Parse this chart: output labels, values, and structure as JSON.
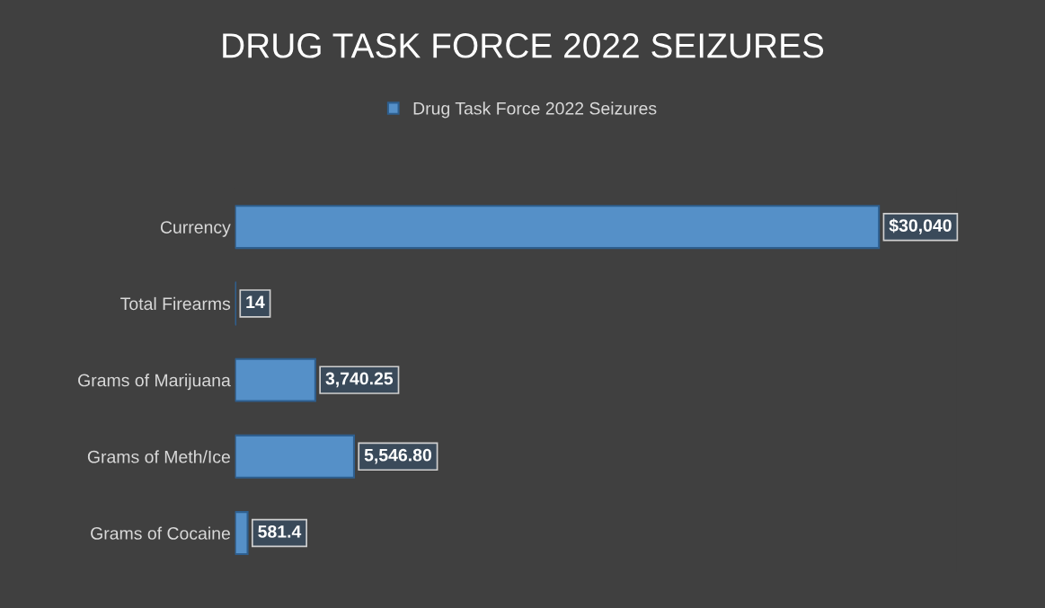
{
  "chart_data": {
    "type": "bar",
    "orientation": "horizontal",
    "title": "DRUG TASK FORCE 2022 SEIZURES",
    "categories": [
      "Currency",
      "Total Firearms",
      "Grams of Marijuana",
      "Grams of Meth/Ice",
      "Grams of Cocaine"
    ],
    "series": [
      {
        "name": "Drug Task Force 2022 Seizures",
        "color": "#5590c8",
        "values": [
          30040,
          14,
          3740.25,
          5546.8,
          581.4
        ],
        "value_labels": [
          "$30,040",
          "14",
          "3,740.25",
          "5,546.80",
          "581.4"
        ]
      }
    ],
    "legend": "top",
    "grid": false,
    "tick_labels": "y"
  }
}
